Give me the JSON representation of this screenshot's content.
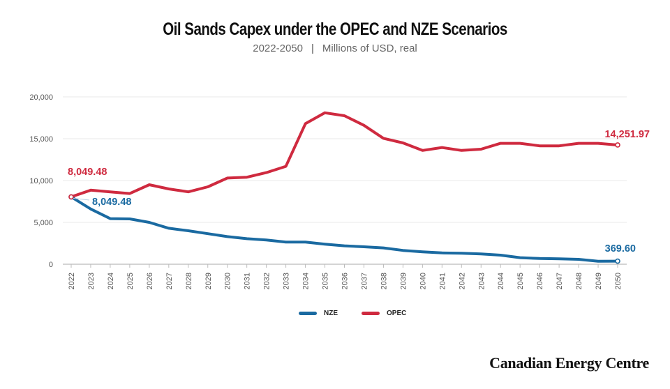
{
  "header": {
    "title": "Oil Sands Capex under the OPEC and NZE Scenarios",
    "subtitle_range": "2022-2050",
    "subtitle_sep": "|",
    "subtitle_units": "Millions of USD, real"
  },
  "brand": "Canadian Energy Centre",
  "colors": {
    "nze": "#1a6aa1",
    "opec": "#cf2a3f",
    "grid": "#e9e9e9",
    "axis": "#bbbbbb"
  },
  "chart_data": {
    "type": "line",
    "title": "Oil Sands Capex under the OPEC and NZE Scenarios",
    "subtitle": "2022-2050 | Millions of USD, real",
    "xlabel": "",
    "ylabel": "",
    "ylim": [
      0,
      20000
    ],
    "yticks": [
      0,
      5000,
      10000,
      15000,
      20000
    ],
    "ytick_labels": [
      "0",
      "5,000",
      "10,000",
      "15,000",
      "20,000"
    ],
    "grid": true,
    "legend_position": "bottom",
    "x": [
      "2022",
      "2023",
      "2024",
      "2025",
      "2026",
      "2027",
      "2028",
      "2029",
      "2030",
      "2031",
      "2032",
      "2033",
      "2034",
      "2035",
      "2036",
      "2037",
      "2038",
      "2039",
      "2040",
      "2041",
      "2042",
      "2043",
      "2044",
      "2045",
      "2046",
      "2047",
      "2048",
      "2049",
      "2050"
    ],
    "series": [
      {
        "name": "NZE",
        "color": "#1a6aa1",
        "values": [
          8049.48,
          6600,
          5450,
          5420,
          5000,
          4300,
          4000,
          3650,
          3300,
          3050,
          2900,
          2650,
          2650,
          2400,
          2200,
          2080,
          1950,
          1650,
          1480,
          1350,
          1320,
          1230,
          1080,
          780,
          680,
          640,
          580,
          350,
          369.6
        ]
      },
      {
        "name": "OPEC",
        "color": "#cf2a3f",
        "values": [
          8049.48,
          8850,
          8650,
          8450,
          9500,
          9000,
          8650,
          9250,
          10300,
          10400,
          10950,
          11700,
          16800,
          18100,
          17750,
          16600,
          15050,
          14500,
          13600,
          13950,
          13600,
          13750,
          14450,
          14450,
          14150,
          14150,
          14450,
          14450,
          14251.97
        ]
      }
    ],
    "annotations": [
      {
        "series": "OPEC",
        "x": "2022",
        "text": "8,049.48"
      },
      {
        "series": "NZE",
        "x": "2022",
        "text": "8,049.48"
      },
      {
        "series": "OPEC",
        "x": "2050",
        "text": "14,251.97"
      },
      {
        "series": "NZE",
        "x": "2050",
        "text": "369.60"
      }
    ]
  }
}
